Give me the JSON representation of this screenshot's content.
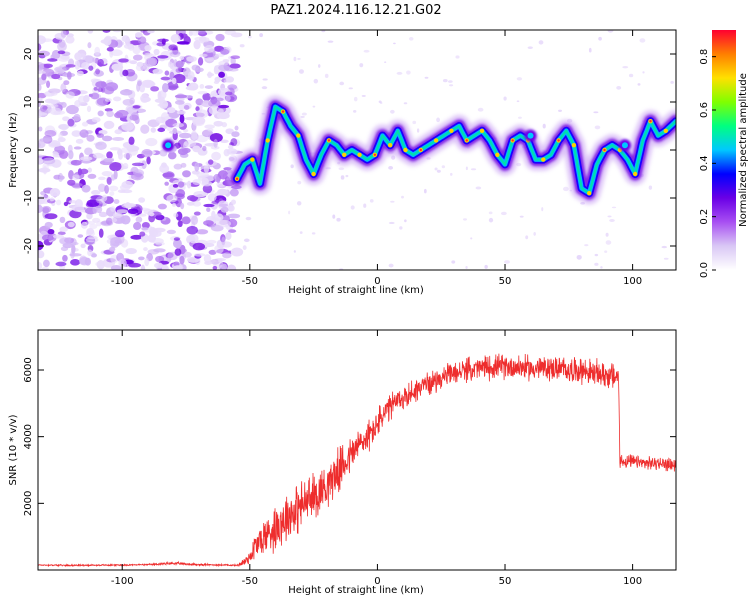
{
  "title": "PAZ1.2024.116.12.21.G02",
  "colors": {
    "snr_line": "#ee2d2d",
    "colormap": [
      "#ffffff",
      "#d9c7f5",
      "#a84ff2",
      "#6a00e6",
      "#0000ff",
      "#00c8ff",
      "#00ff80",
      "#80ff00",
      "#ffe000",
      "#ff7f00",
      "#ff0030"
    ]
  },
  "chart_data": [
    {
      "type": "heatmap",
      "xlabel": "Height of straight line (km)",
      "ylabel": "Frequency (Hz)",
      "xlim": [
        -133,
        117
      ],
      "ylim": [
        -25,
        25
      ],
      "xticks": [
        -100,
        -50,
        0,
        50,
        100
      ],
      "yticks": [
        -20,
        -10,
        0,
        10,
        20
      ],
      "colorbar": {
        "label": "Normalized spectral amplitude",
        "range": [
          0.0,
          0.9
        ],
        "ticks": [
          "0.0",
          "0.2",
          "0.4",
          "0.6",
          "0.8"
        ]
      },
      "ridge": {
        "x": [
          -55,
          -52,
          -49,
          -46,
          -43,
          -40,
          -37,
          -34,
          -31,
          -28,
          -25,
          -22,
          -19,
          -16,
          -13,
          -10,
          -7,
          -4,
          -1,
          2,
          5,
          8,
          11,
          14,
          17,
          20,
          23,
          26,
          29,
          32,
          35,
          38,
          41,
          44,
          47,
          50,
          53,
          56,
          59,
          62,
          65,
          68,
          71,
          74,
          77,
          80,
          83,
          86,
          89,
          92,
          95,
          98,
          101,
          104,
          107,
          110,
          113,
          117
        ],
        "y": [
          -6,
          -3,
          -2,
          -7,
          2,
          9,
          8,
          5,
          3,
          -2,
          -5,
          -1,
          2,
          1,
          -1,
          0,
          -1,
          -2,
          -1,
          3,
          1,
          4,
          0,
          -1,
          0,
          1,
          2,
          3,
          4,
          5,
          2,
          3,
          4,
          2,
          -1,
          -3,
          2,
          3,
          2,
          -2,
          -2,
          -1,
          2,
          4,
          1,
          -8,
          -9,
          -3,
          0,
          1,
          0,
          -2,
          -5,
          2,
          6,
          3,
          4,
          6
        ]
      },
      "background_noise_x_range": [
        -133,
        -55
      ],
      "noise_peaks": [
        {
          "x": -82,
          "y": 1
        },
        {
          "x": 60,
          "y": 3
        },
        {
          "x": 97,
          "y": 1
        }
      ]
    },
    {
      "type": "line",
      "xlabel": "Height of straight line (km)",
      "ylabel": "SNR (10 * v/v)",
      "xlim": [
        -133,
        117
      ],
      "ylim": [
        0,
        7200
      ],
      "xticks": [
        -100,
        -50,
        0,
        50,
        100
      ],
      "yticks": [
        2000,
        4000,
        6000
      ],
      "series": [
        {
          "x": [
            -133,
            -120,
            -100,
            -90,
            -80,
            -70,
            -60,
            -55,
            -52,
            -50,
            -48,
            -45,
            -42,
            -40,
            -38,
            -35,
            -32,
            -30,
            -28,
            -25,
            -22,
            -20,
            -18,
            -15,
            -12,
            -10,
            -8,
            -5,
            -2,
            0,
            3,
            6,
            10,
            14,
            18,
            22,
            26,
            30,
            35,
            40,
            45,
            50,
            55,
            60,
            65,
            70,
            75,
            80,
            85,
            90,
            93,
            94.5,
            95,
            96,
            100,
            105,
            110,
            117
          ],
          "y": [
            150,
            140,
            150,
            160,
            200,
            160,
            150,
            140,
            250,
            400,
            700,
            950,
            1150,
            1300,
            1450,
            1650,
            1800,
            1900,
            2050,
            2200,
            2400,
            2550,
            2750,
            3000,
            3300,
            3500,
            3700,
            3900,
            4150,
            4400,
            4700,
            4950,
            5150,
            5350,
            5550,
            5650,
            5800,
            5900,
            6000,
            6050,
            6100,
            6100,
            6100,
            6050,
            6050,
            6050,
            6000,
            6000,
            5900,
            5850,
            5800,
            5800,
            3300,
            3250,
            3250,
            3200,
            3200,
            3150
          ],
          "noise_amplitude": [
            20,
            20,
            20,
            20,
            40,
            30,
            20,
            20,
            150,
            200,
            400,
            500,
            600,
            650,
            700,
            700,
            700,
            700,
            650,
            650,
            650,
            600,
            600,
            600,
            550,
            500,
            500,
            450,
            420,
            420,
            400,
            380,
            360,
            340,
            320,
            300,
            300,
            300,
            320,
            340,
            340,
            340,
            340,
            340,
            340,
            340,
            340,
            360,
            360,
            380,
            380,
            380,
            200,
            200,
            180,
            180,
            180,
            180
          ]
        }
      ]
    }
  ]
}
